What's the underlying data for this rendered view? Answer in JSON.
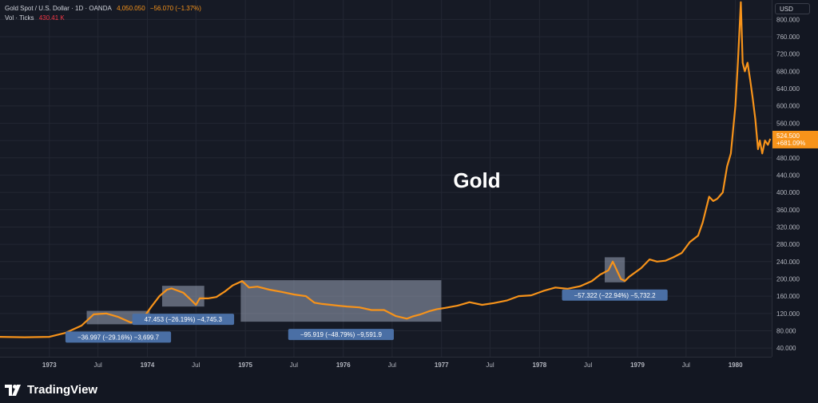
{
  "header": {
    "symbol": "Gold Spot / U.S. Dollar · 1D · OANDA",
    "last_price": "4,050.050",
    "change": "−56.070 (−1.37%)",
    "vol_label": "Vol · Ticks",
    "vol_value": "430.41 K"
  },
  "currency_button": "USD",
  "brand": {
    "name": "TradingView",
    "icon": "tradingview-logo-icon"
  },
  "colors": {
    "line": "#f7931a",
    "background": "#161a25",
    "box": "#b8c4d9",
    "badge": "#4a6fa5",
    "up": "#f7931a",
    "down": "#f23645"
  },
  "chart_data": {
    "type": "line",
    "title": "Gold",
    "y_ticks": [
      "800.000",
      "760.000",
      "720.000",
      "680.000",
      "640.000",
      "600.000",
      "560.000",
      "520.000",
      "480.000",
      "440.000",
      "400.000",
      "360.000",
      "320.000",
      "280.000",
      "240.000",
      "200.000",
      "160.000",
      "120.000",
      "80.000",
      "40.000"
    ],
    "ylim": [
      20,
      845
    ],
    "x_ticks": [
      "1973",
      "Jul",
      "1974",
      "Jul",
      "1975",
      "Jul",
      "1976",
      "Jul",
      "1977",
      "Jul",
      "1978",
      "Jul",
      "1979",
      "Jul",
      "1980"
    ],
    "xlim": [
      "1972-07-01",
      "1980-05-15"
    ],
    "last_value_label": {
      "price": "524.500",
      "change": "+681.09%"
    },
    "series": [
      {
        "x": [
          "1972-07-01",
          "1972-10-01",
          "1973-01-01",
          "1973-03-01",
          "1973-05-01",
          "1973-06-15",
          "1973-08-01",
          "1973-09-15",
          "1973-11-01",
          "1973-12-15",
          "1974-01-15",
          "1974-02-15",
          "1974-03-15",
          "1974-04-01",
          "1974-05-15",
          "1974-06-15",
          "1974-07-01",
          "1974-07-15",
          "1974-08-15",
          "1974-09-15",
          "1974-10-15",
          "1974-11-15",
          "1974-12-20",
          "1975-01-15",
          "1975-02-15",
          "1975-04-01",
          "1975-05-15",
          "1975-07-01",
          "1975-08-15",
          "1975-09-15",
          "1975-10-15",
          "1975-11-15",
          "1975-12-15",
          "1976-01-15",
          "1976-03-01",
          "1976-04-15",
          "1976-06-01",
          "1976-07-15",
          "1976-08-25",
          "1976-09-15",
          "1976-10-15",
          "1976-11-15",
          "1976-12-15",
          "1977-01-15",
          "1977-03-01",
          "1977-04-15",
          "1977-06-01",
          "1977-07-15",
          "1977-09-01",
          "1977-10-15",
          "1977-12-01",
          "1978-01-15",
          "1978-03-01",
          "1978-04-15",
          "1978-06-01",
          "1978-07-15",
          "1978-08-15",
          "1978-09-15",
          "1978-10-01",
          "1978-10-31",
          "1978-11-15",
          "1978-12-01",
          "1979-01-15",
          "1979-02-15",
          "1979-03-15",
          "1979-04-15",
          "1979-05-15",
          "1979-06-15",
          "1979-07-15",
          "1979-08-15",
          "1979-09-01",
          "1979-09-25",
          "1979-10-10",
          "1979-10-25",
          "1979-11-15",
          "1979-12-01",
          "1979-12-15",
          "1980-01-01",
          "1980-01-10",
          "1980-01-21",
          "1980-01-28",
          "1980-02-05",
          "1980-02-15",
          "1980-02-25",
          "1980-03-05",
          "1980-03-15",
          "1980-03-25",
          "1980-04-01",
          "1980-04-10",
          "1980-04-20",
          "1980-05-01",
          "1980-05-10"
        ],
        "values": [
          66,
          65,
          66,
          75,
          92,
          118,
          120,
          112,
          99,
          108,
          135,
          160,
          175,
          178,
          168,
          150,
          140,
          155,
          155,
          158,
          170,
          185,
          195,
          180,
          182,
          175,
          170,
          164,
          160,
          145,
          142,
          140,
          138,
          136,
          134,
          128,
          128,
          114,
          108,
          113,
          118,
          125,
          130,
          133,
          138,
          146,
          140,
          144,
          150,
          160,
          162,
          172,
          180,
          177,
          183,
          195,
          210,
          220,
          240,
          200,
          195,
          205,
          225,
          245,
          240,
          242,
          250,
          260,
          285,
          300,
          330,
          390,
          380,
          385,
          400,
          460,
          490,
          600,
          700,
          840,
          700,
          680,
          700,
          660,
          620,
          570,
          500,
          520,
          490,
          520,
          510,
          524
        ]
      }
    ],
    "measurements": [
      {
        "label": "−36.997 (−29.16%) −3,699.7",
        "x0": "1973-05-20",
        "x1": "1974-01-10",
        "y0": 95,
        "y1": 126
      },
      {
        "label": "47.453 (−26.19%) −4,745.3",
        "x0": "1974-02-25",
        "x1": "1974-08-01",
        "y0": 136,
        "y1": 184
      },
      {
        "label": "−95.919 (−48.79%) −9,591.9",
        "x0": "1974-12-15",
        "x1": "1976-12-31",
        "y0": 101,
        "y1": 197
      },
      {
        "label": "−57.322 (−22.94%) −5,732.2",
        "x0": "1978-09-01",
        "x1": "1978-11-15",
        "y0": 192,
        "y1": 250
      }
    ]
  }
}
